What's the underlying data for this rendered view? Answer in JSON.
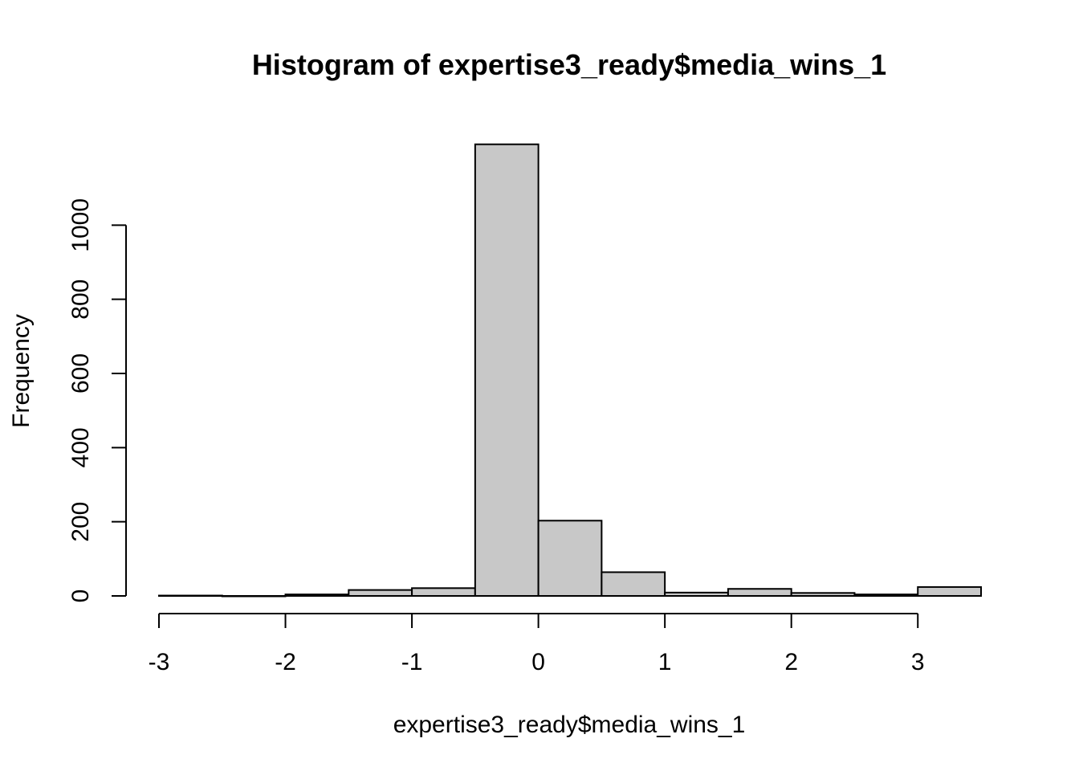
{
  "chart_data": {
    "type": "bar",
    "title": "Histogram of expertise3_ready$media_wins_1",
    "xlabel": "expertise3_ready$media_wins_1",
    "ylabel": "Frequency",
    "bin_edges": [
      -3,
      -2.5,
      -2,
      -1.5,
      -1,
      -0.5,
      0,
      0.5,
      1,
      1.5,
      2,
      2.5,
      3,
      3.5
    ],
    "values": [
      1,
      0,
      4,
      16,
      21,
      1218,
      203,
      64,
      9,
      19,
      8,
      4,
      24
    ],
    "xlim": [
      -3,
      3.5
    ],
    "ylim": [
      0,
      1200
    ],
    "x_ticks": [
      -3,
      -2,
      -1,
      0,
      1,
      2,
      3
    ],
    "x_tick_labels": [
      "-3",
      "-2",
      "-1",
      "0",
      "1",
      "2",
      "3"
    ],
    "y_ticks": [
      0,
      200,
      400,
      600,
      800,
      1000
    ],
    "y_tick_labels": [
      "0",
      "200",
      "400",
      "600",
      "800",
      "1000"
    ],
    "bar_color": "#c8c8c8",
    "grid": false,
    "legend": "none"
  }
}
